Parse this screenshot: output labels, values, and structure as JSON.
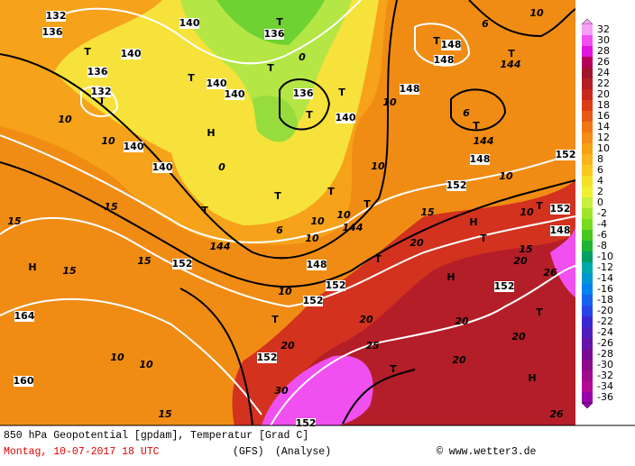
{
  "map": {
    "labels": [
      "132",
      "136",
      "140",
      "136",
      "140",
      "T",
      "136",
      "T",
      "132",
      "10",
      "10",
      "140",
      "H",
      "140",
      "0",
      "136",
      "T",
      "T",
      "140",
      "140",
      "T",
      "T",
      "0",
      "140",
      "T",
      "10",
      "148",
      "T",
      "148",
      "148",
      "6",
      "10",
      "T",
      "144",
      "T",
      "6",
      "144",
      "148",
      "10",
      "152",
      "10",
      "152",
      "15",
      "H",
      "10",
      "T",
      "152",
      "148",
      "T",
      "T",
      "T",
      "10",
      "144",
      "10",
      "6",
      "144",
      "T",
      "10",
      "148",
      "15",
      "15",
      "H",
      "15",
      "15",
      "152",
      "10",
      "152",
      "152",
      "T",
      "20",
      "15",
      "20",
      "H",
      "T",
      "152",
      "26",
      "20",
      "T",
      "152",
      "20",
      "20",
      "T",
      "20",
      "25",
      "10",
      "10",
      "20",
      "T",
      "H",
      "160",
      "164",
      "30",
      "15",
      "152",
      "26"
    ]
  },
  "legend": {
    "ticks": [
      32,
      30,
      28,
      26,
      24,
      22,
      20,
      18,
      16,
      14,
      12,
      10,
      8,
      6,
      4,
      2,
      0,
      -2,
      -4,
      -6,
      -8,
      -10,
      -12,
      -14,
      -16,
      -18,
      -20,
      -22,
      -24,
      -26,
      -28,
      -30,
      -32,
      -34,
      -36
    ],
    "colors": [
      "#f7a0f7",
      "#f050f0",
      "#e014dc",
      "#b4005a",
      "#a0142d",
      "#b41e23",
      "#c8281e",
      "#dc3c14",
      "#e85a14",
      "#f07814",
      "#f58c14",
      "#f8a014",
      "#fab41e",
      "#fac81e",
      "#f5e028",
      "#f0f032",
      "#c8f03c",
      "#a0e628",
      "#78dc1e",
      "#46c81e",
      "#1eb432",
      "#00a064",
      "#00aaaa",
      "#0096d2",
      "#0082f0",
      "#1464f0",
      "#2846e6",
      "#3c28d2",
      "#501ebe",
      "#6414aa",
      "#780a96",
      "#8c0a8c",
      "#a00a8c",
      "#b40a96",
      "#9600aa"
    ]
  },
  "footer": {
    "line1": "850 hPa Geopotential [gpdam], Temperatur [Grad C]",
    "date": "Montag, 10-07-2017  18 UTC",
    "model": "(GFS)",
    "mode": "(Analyse)",
    "credit": "© www.wetter3.de"
  }
}
